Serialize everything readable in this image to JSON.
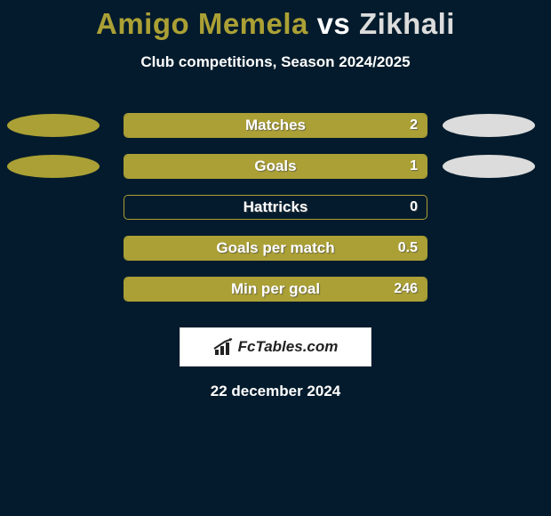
{
  "background_color": "#031b2c",
  "title": {
    "player1": "Amigo Memela",
    "vs": "vs",
    "player2": "Zikhali",
    "player1_color": "#aba035",
    "vs_color": "#ffffff",
    "player2_color": "#dcdcdc",
    "fontsize": 33
  },
  "subtitle": {
    "text": "Club competitions, Season 2024/2025",
    "color": "#ffffff",
    "fontsize": 17
  },
  "ellipse": {
    "left_color": "#aba035",
    "right_color": "#dcdcdc",
    "width": 104,
    "height": 26
  },
  "bars": {
    "track_width": 342,
    "track_height": 28,
    "border_color": "#aba035",
    "fill_color": "#aba035",
    "track_bg": "transparent",
    "label_color": "#ffffff",
    "value_color": "#ffffff",
    "label_fontsize": 17,
    "value_fontsize": 16
  },
  "rows": [
    {
      "label": "Matches",
      "value": "2",
      "fill_pct": 100,
      "show_ellipses": true
    },
    {
      "label": "Goals",
      "value": "1",
      "fill_pct": 100,
      "show_ellipses": true
    },
    {
      "label": "Hattricks",
      "value": "0",
      "fill_pct": 0,
      "show_ellipses": false
    },
    {
      "label": "Goals per match",
      "value": "0.5",
      "fill_pct": 100,
      "show_ellipses": false
    },
    {
      "label": "Min per goal",
      "value": "246",
      "fill_pct": 100,
      "show_ellipses": false
    }
  ],
  "brand": {
    "text": "FcTables.com",
    "box_bg": "#ffffff",
    "box_border": "#d9d9d9",
    "text_color": "#222222",
    "icon_color": "#222222",
    "fontsize": 17
  },
  "date": {
    "text": "22 december 2024",
    "color": "#ffffff",
    "fontsize": 17
  }
}
